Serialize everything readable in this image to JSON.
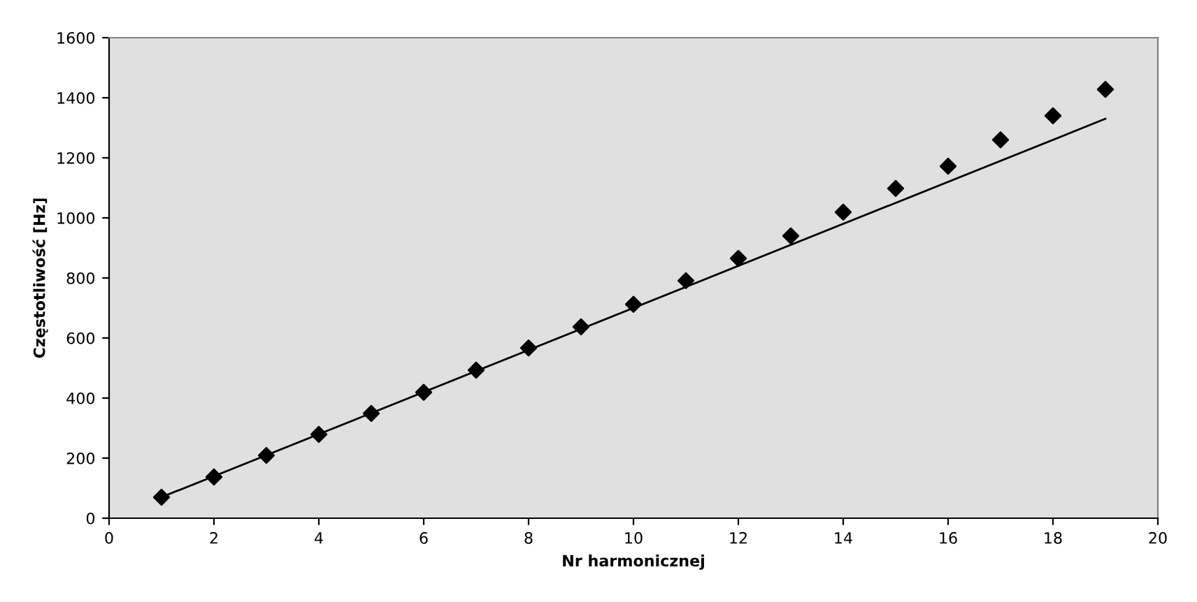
{
  "chart_data": {
    "type": "scatter",
    "xlabel": "Nr harmonicznej",
    "ylabel": "Częstotliwość [Hz]",
    "xlim": [
      0,
      20
    ],
    "xticks": [
      0,
      2,
      4,
      6,
      8,
      10,
      12,
      14,
      16,
      18,
      20
    ],
    "ylim": [
      0,
      1600
    ],
    "yticks": [
      0,
      200,
      400,
      600,
      800,
      1000,
      1200,
      1400,
      1600
    ],
    "grid": false,
    "marker": "diamond",
    "series": [
      {
        "color": "#000000",
        "x": [
          1,
          2,
          3,
          4,
          5,
          6,
          7,
          8,
          9,
          10,
          11,
          12,
          13,
          14,
          15,
          16,
          17,
          18,
          19
        ],
        "values": [
          70,
          137,
          209,
          279,
          349,
          419,
          493,
          567,
          637,
          712,
          791,
          865,
          940,
          1019,
          1098,
          1172,
          1260,
          1340,
          1428
        ]
      },
      {
        "type": "line",
        "color": "#000000",
        "marker": "none",
        "line_style": "solid",
        "x": [
          1,
          19
        ],
        "values": [
          70,
          1330
        ]
      }
    ]
  }
}
